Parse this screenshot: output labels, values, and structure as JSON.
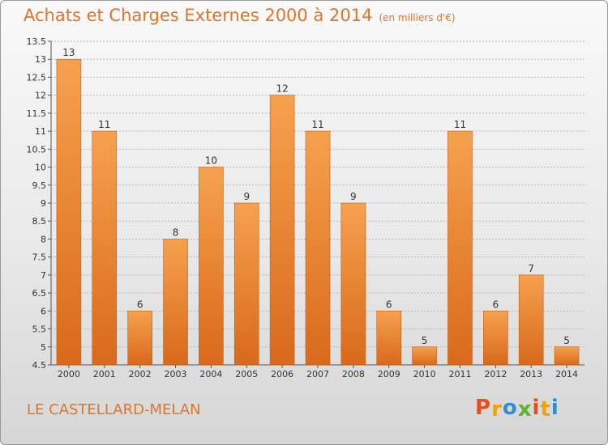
{
  "header": {
    "title": "Achats et Charges Externes 2000 à 2014",
    "subtitle": "(en milliers d'€)"
  },
  "footer": {
    "commune": "LE CASTELLARD-MELAN",
    "logo": {
      "letters": [
        "P",
        "r",
        "o",
        "x",
        "i",
        "t",
        "i"
      ],
      "colors": [
        "#e84e1b",
        "#f0a20a",
        "#2a8fd6",
        "#5fb130",
        "#e84e1b",
        "#f0a20a",
        "#2a8fd6"
      ]
    }
  },
  "chart_data": {
    "type": "bar",
    "categories": [
      "2000",
      "2001",
      "2002",
      "2003",
      "2004",
      "2005",
      "2006",
      "2007",
      "2008",
      "2009",
      "2010",
      "2011",
      "2012",
      "2013",
      "2014"
    ],
    "values": [
      13,
      11,
      6,
      8,
      10,
      9,
      12,
      11,
      9,
      6,
      5,
      11,
      6,
      7,
      5
    ],
    "value_labels": [
      "13",
      "11",
      "6",
      "8",
      "10",
      "9",
      "12",
      "11",
      "9",
      "6",
      "5",
      "11",
      "6",
      "7",
      "5"
    ],
    "ylim": [
      4.5,
      13.5
    ],
    "yticks": [
      "4.5",
      "5",
      "5.5",
      "6",
      "6.5",
      "7",
      "7.5",
      "8",
      "8.5",
      "9",
      "9.5",
      "10",
      "10.5",
      "11",
      "11.5",
      "12",
      "12.5",
      "13",
      "13.5"
    ],
    "grid": true,
    "colors": {
      "bar_top": "#f6a14e",
      "bar_bottom": "#d9691c",
      "bar_edge": "#c45f16",
      "grid": "#b8b8b8",
      "label": "#333333"
    }
  }
}
